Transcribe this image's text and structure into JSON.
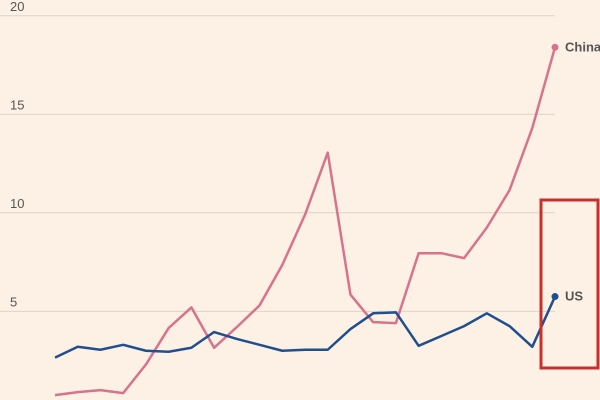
{
  "chart_data": {
    "type": "line",
    "categories": [
      null,
      null,
      null,
      null,
      null,
      null,
      null,
      null,
      null,
      null,
      null,
      null,
      null,
      null,
      null,
      null,
      null,
      null,
      null,
      null,
      null,
      null,
      null
    ],
    "series": [
      {
        "name": "China",
        "color": "#d7738b",
        "values": [
          0.75,
          0.9,
          1.0,
          0.85,
          2.3,
          4.15,
          5.2,
          3.15,
          4.2,
          5.3,
          7.35,
          9.9,
          13.05,
          5.85,
          4.45,
          4.4,
          7.95,
          7.95,
          7.7,
          9.25,
          11.15,
          14.3,
          18.4
        ]
      },
      {
        "name": "US",
        "color": "#1f4f8f",
        "values": [
          2.65,
          3.2,
          3.05,
          3.3,
          3.0,
          2.95,
          3.15,
          3.95,
          3.6,
          3.3,
          3.0,
          3.05,
          3.05,
          4.1,
          4.9,
          4.95,
          3.25,
          3.75,
          4.25,
          4.9,
          4.25,
          3.2,
          5.75
        ]
      }
    ],
    "ylim": [
      0.5,
      20.8
    ],
    "yticks": [
      5,
      10,
      15,
      20
    ],
    "grid": true
  }
}
